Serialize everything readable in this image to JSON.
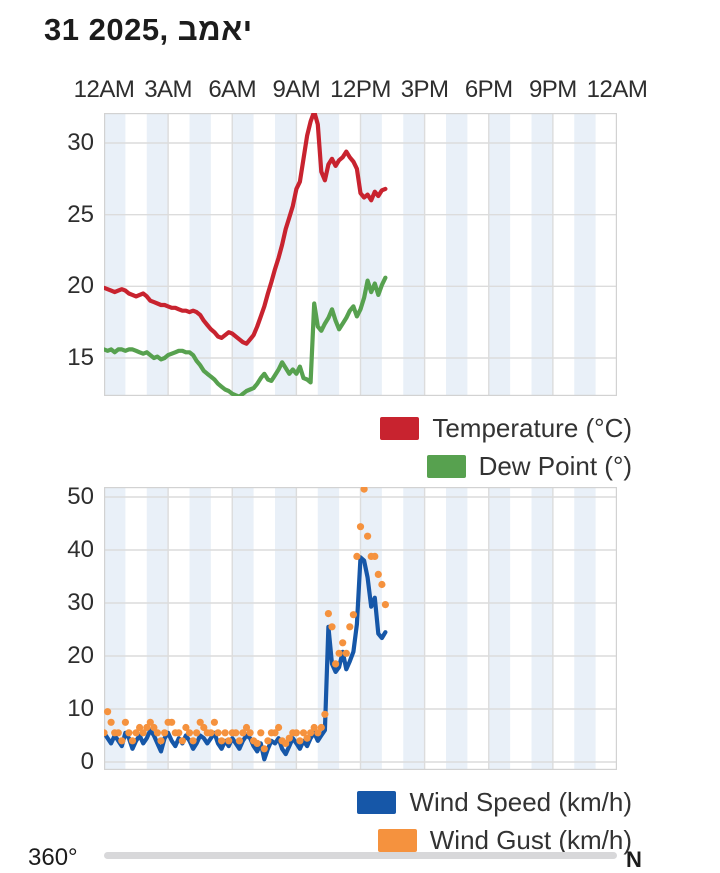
{
  "title": "31 2025, במאי",
  "colors": {
    "temperature": "#c8232f",
    "dew_point": "#57a14f",
    "wind_speed": "#1657a8",
    "wind_gust": "#f5923e",
    "band": "#e9f0f8",
    "grid": "#dcdcdc",
    "border": "#d2d2d2"
  },
  "x_axis": {
    "labels": [
      "12AM",
      "3AM",
      "6AM",
      "9AM",
      "12PM",
      "3PM",
      "6PM",
      "9PM",
      "12AM"
    ],
    "range_hours": [
      0,
      24
    ],
    "label_step_hours": 3,
    "band_step_hours": 1
  },
  "chart_data": [
    {
      "type": "line",
      "name": "temperature-dew-point-chart",
      "y_ticks": [
        15,
        20,
        25,
        30
      ],
      "ylim": [
        12.35,
        32.1
      ],
      "x_start_hour": 0,
      "x_step_minutes": 10,
      "legend": [
        {
          "key": "temperature",
          "label": "Temperature (°C)"
        },
        {
          "key": "dew_point",
          "label": "Dew Point (°)"
        }
      ],
      "series": [
        {
          "key": "temperature",
          "style": "line",
          "values": [
            19.9,
            19.8,
            19.7,
            19.6,
            19.7,
            19.8,
            19.7,
            19.5,
            19.4,
            19.3,
            19.4,
            19.5,
            19.3,
            19.0,
            18.9,
            18.8,
            18.7,
            18.7,
            18.6,
            18.5,
            18.5,
            18.4,
            18.3,
            18.3,
            18.2,
            18.3,
            18.2,
            18.0,
            17.6,
            17.3,
            17.0,
            16.8,
            16.5,
            16.4,
            16.6,
            16.8,
            16.7,
            16.5,
            16.3,
            16.1,
            16.0,
            16.3,
            16.6,
            17.2,
            17.9,
            18.6,
            19.5,
            20.3,
            21.2,
            22.0,
            22.9,
            24.0,
            24.8,
            25.6,
            26.8,
            27.3,
            28.9,
            30.5,
            31.5,
            32.2,
            31.3,
            28.0,
            27.4,
            28.5,
            28.9,
            28.4,
            28.8,
            29.0,
            29.4,
            29.0,
            28.7,
            28.2,
            26.5,
            26.2,
            26.4,
            26.0,
            26.6,
            26.3,
            26.7,
            26.8
          ]
        },
        {
          "key": "dew_point",
          "style": "line",
          "values": [
            15.6,
            15.5,
            15.6,
            15.4,
            15.6,
            15.6,
            15.5,
            15.6,
            15.6,
            15.5,
            15.4,
            15.3,
            15.4,
            15.2,
            15.0,
            15.1,
            14.9,
            15.0,
            15.2,
            15.3,
            15.4,
            15.5,
            15.5,
            15.4,
            15.4,
            15.2,
            14.8,
            14.5,
            14.1,
            13.9,
            13.7,
            13.5,
            13.2,
            13.0,
            12.8,
            12.7,
            12.5,
            12.4,
            12.3,
            12.5,
            12.7,
            12.8,
            12.9,
            13.2,
            13.6,
            13.9,
            13.5,
            13.4,
            13.8,
            14.2,
            14.7,
            14.3,
            13.9,
            14.2,
            13.9,
            14.4,
            13.6,
            13.5,
            13.3,
            18.8,
            17.2,
            16.9,
            17.4,
            17.8,
            18.4,
            17.6,
            17.0,
            17.4,
            17.8,
            18.3,
            18.6,
            17.9,
            18.4,
            19.2,
            20.4,
            19.6,
            20.2,
            19.4,
            20.1,
            20.6
          ]
        }
      ]
    },
    {
      "type": "line+scatter",
      "name": "wind-chart",
      "y_ticks": [
        0,
        10,
        20,
        30,
        40,
        50
      ],
      "ylim": [
        -1.5,
        51.9
      ],
      "x_start_hour": 0,
      "x_step_minutes": 10,
      "legend": [
        {
          "key": "wind_speed",
          "label": "Wind Speed (km/h)"
        },
        {
          "key": "wind_gust",
          "label": "Wind Gust (km/h)"
        }
      ],
      "series": [
        {
          "key": "wind_speed",
          "style": "line",
          "values": [
            5.5,
            4.5,
            3.5,
            5.0,
            4.0,
            3.0,
            5.5,
            4.5,
            2.5,
            4.0,
            5.0,
            3.5,
            4.5,
            6.0,
            5.0,
            3.5,
            2.0,
            4.5,
            5.5,
            4.0,
            3.0,
            4.5,
            3.5,
            5.0,
            4.0,
            2.5,
            3.5,
            5.0,
            4.5,
            3.5,
            4.5,
            5.5,
            3.5,
            2.5,
            4.0,
            3.0,
            4.5,
            3.5,
            2.5,
            4.0,
            5.0,
            4.5,
            3.0,
            2.0,
            3.5,
            0.5,
            2.5,
            4.0,
            3.5,
            4.5,
            2.5,
            1.5,
            3.0,
            4.5,
            3.5,
            2.5,
            4.0,
            3.0,
            4.5,
            5.5,
            4.0,
            5.0,
            6.0,
            25.5,
            18.5,
            17.0,
            17.9,
            20.8,
            17.5,
            19.0,
            20.8,
            26.0,
            38.6,
            38.0,
            34.8,
            29.3,
            31.0,
            24.2,
            23.4,
            24.5
          ]
        },
        {
          "key": "wind_gust",
          "style": "scatter",
          "values": [
            5.5,
            9.5,
            7.5,
            5.5,
            5.5,
            4.0,
            7.5,
            5.5,
            4.0,
            5.5,
            6.5,
            5.5,
            6.5,
            7.5,
            6.5,
            5.5,
            4.0,
            5.5,
            7.5,
            7.5,
            5.5,
            5.5,
            4.0,
            6.5,
            5.5,
            4.0,
            5.5,
            7.5,
            6.5,
            5.5,
            5.5,
            7.5,
            5.5,
            4.0,
            5.5,
            4.0,
            5.5,
            5.5,
            4.0,
            5.5,
            6.5,
            5.5,
            4.0,
            3.5,
            5.5,
            2.5,
            4.0,
            5.5,
            5.5,
            6.5,
            4.0,
            3.5,
            4.5,
            5.5,
            5.5,
            4.0,
            5.5,
            4.5,
            5.5,
            6.5,
            5.5,
            6.5,
            9.0,
            28.0,
            25.5,
            18.5,
            20.5,
            22.5,
            20.5,
            25.5,
            27.8,
            38.8,
            44.4,
            51.5,
            42.6,
            38.8,
            38.8,
            35.4,
            33.5,
            29.7
          ]
        }
      ]
    }
  ],
  "direction_chart": {
    "left_label": "360°",
    "right_label": "N"
  }
}
